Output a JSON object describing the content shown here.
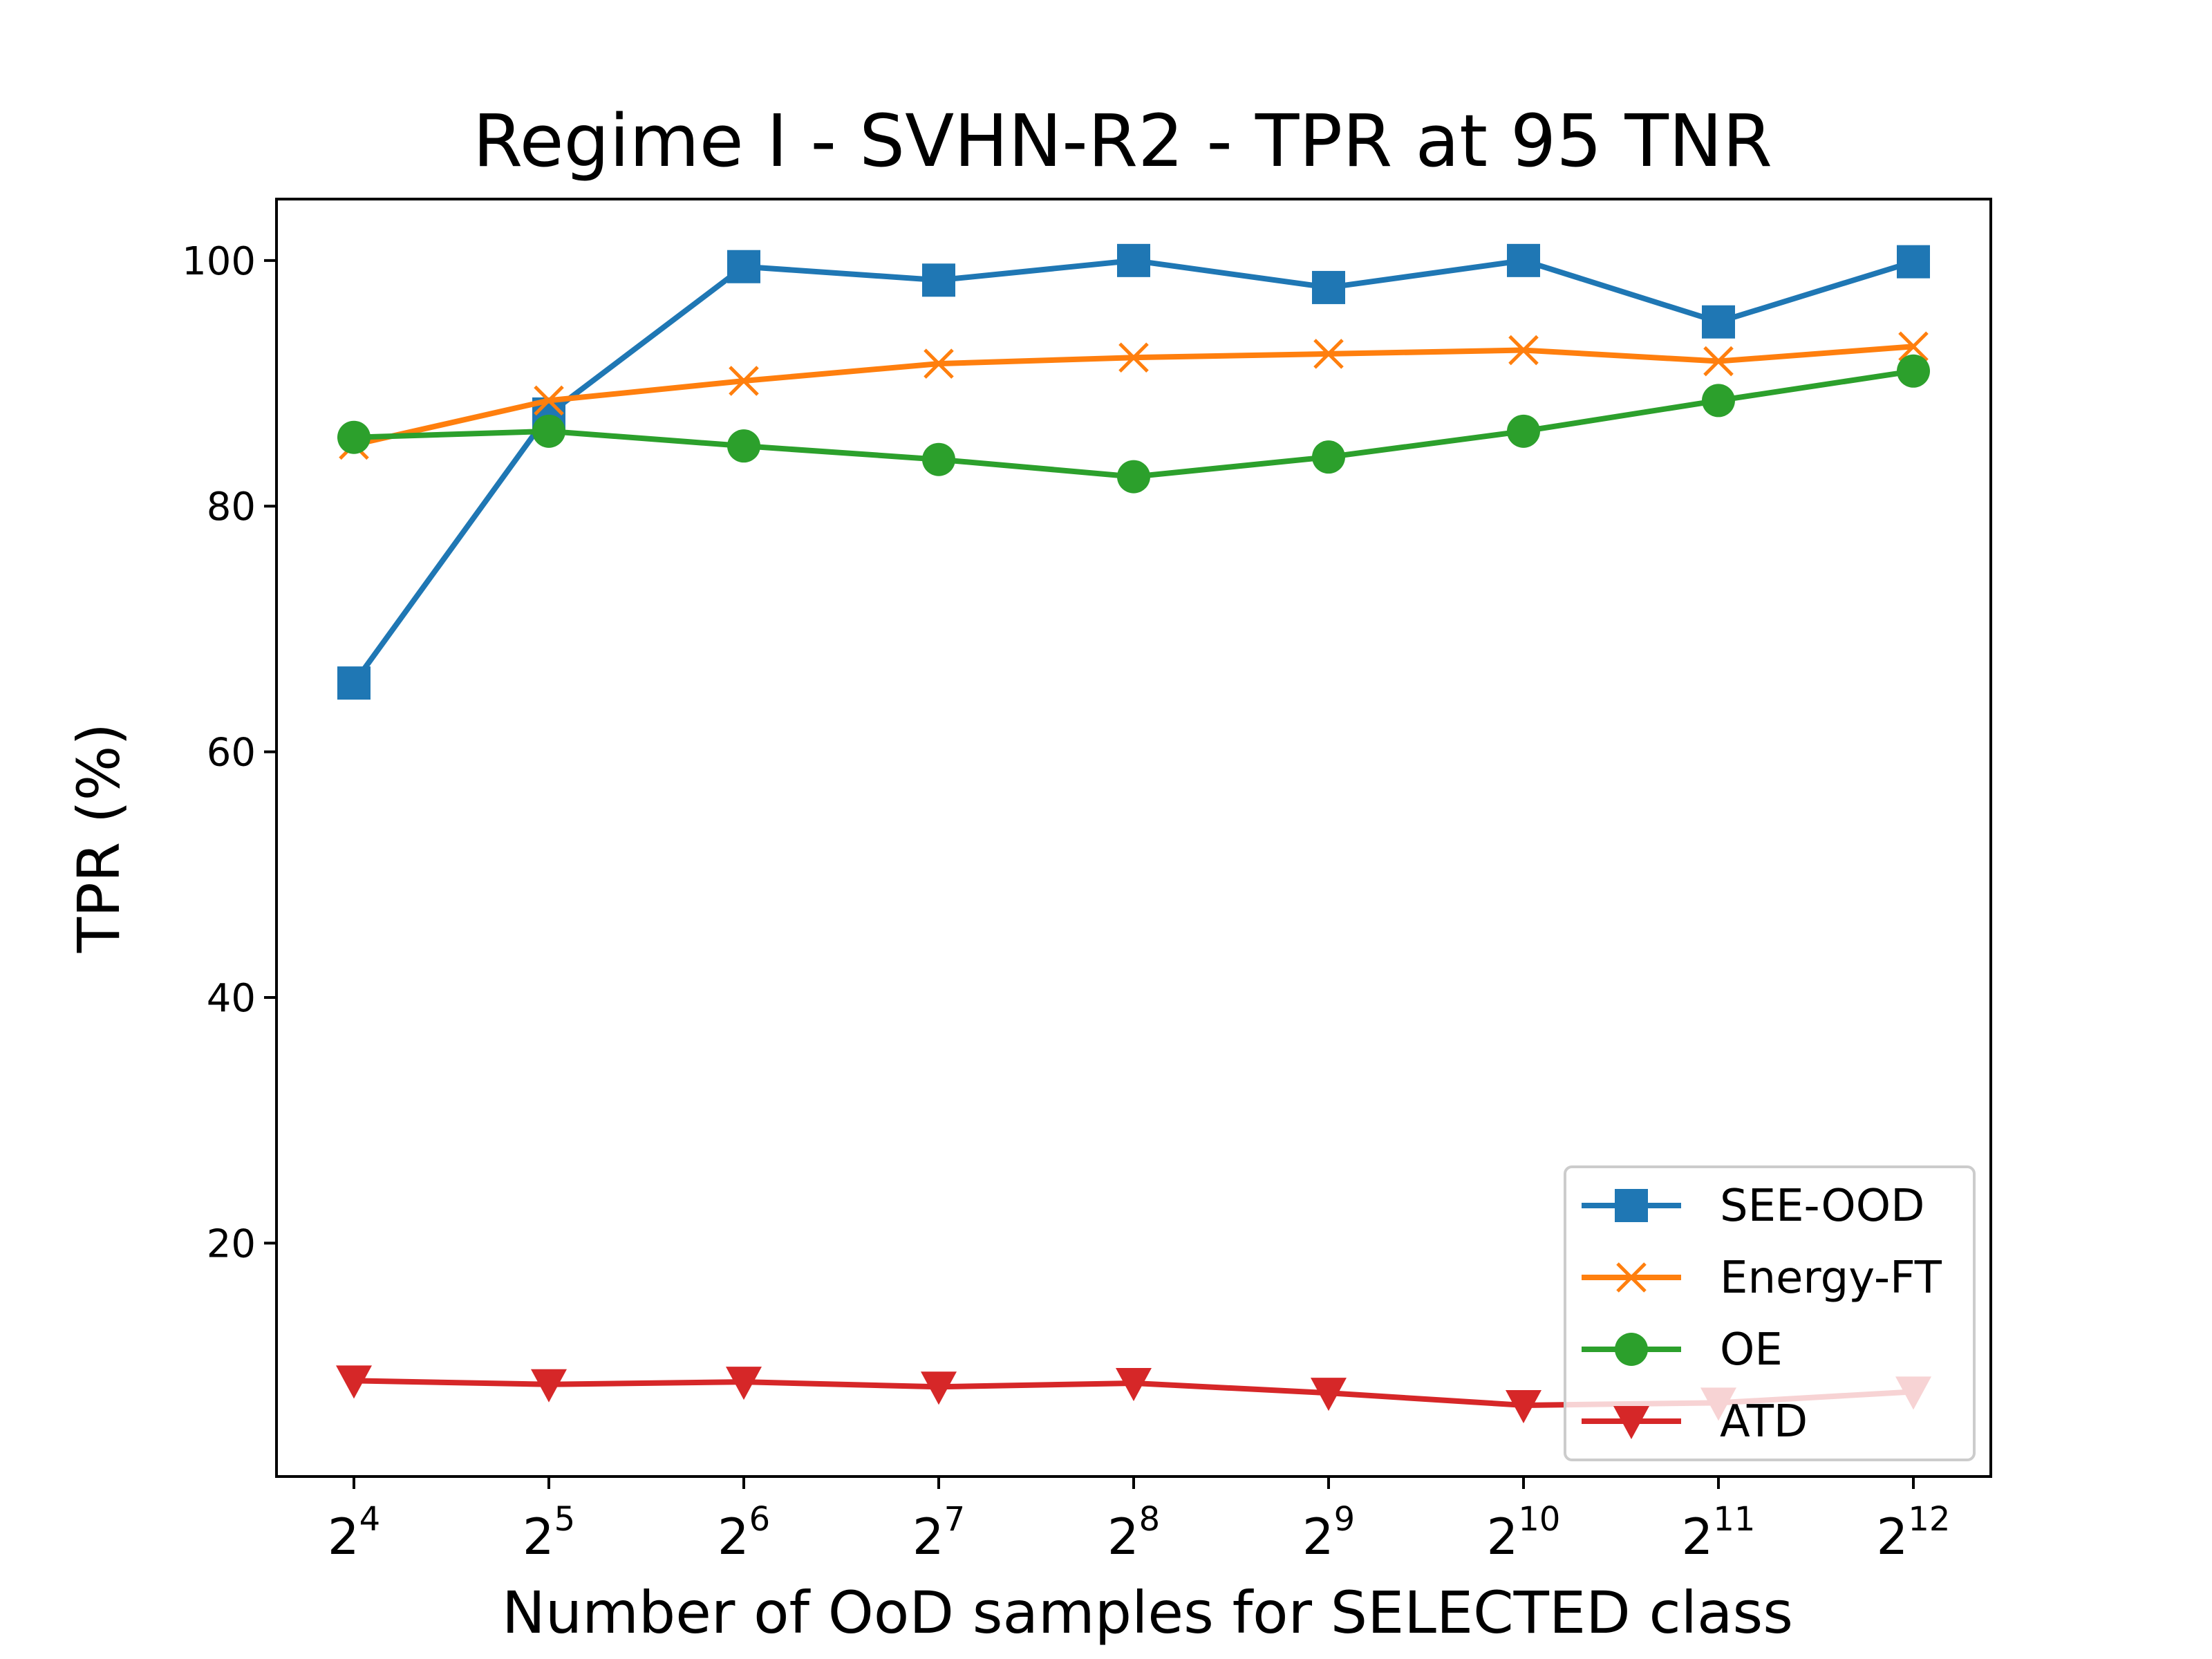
{
  "chart_data": {
    "type": "line",
    "title": "Regime I - SVHN-R2 - TPR at 95 TNR",
    "xlabel": "Number of OoD samples for SELECTED class",
    "ylabel": "TPR (%)",
    "x_scale": "log2",
    "x": [
      16,
      32,
      64,
      128,
      256,
      512,
      1024,
      2048,
      4096
    ],
    "x_tick_labels": [
      {
        "base": "2",
        "exp": "4"
      },
      {
        "base": "2",
        "exp": "5"
      },
      {
        "base": "2",
        "exp": "6"
      },
      {
        "base": "2",
        "exp": "7"
      },
      {
        "base": "2",
        "exp": "8"
      },
      {
        "base": "2",
        "exp": "9"
      },
      {
        "base": "2",
        "exp": "10"
      },
      {
        "base": "2",
        "exp": "11"
      },
      {
        "base": "2",
        "exp": "12"
      }
    ],
    "y_ticks": [
      "20",
      "40",
      "60",
      "80",
      "100"
    ],
    "ylim": [
      1.0,
      105.0
    ],
    "grid": false,
    "legend_position": "lower-right",
    "series": [
      {
        "name": "SEE-OOD",
        "color": "#1f77b4",
        "marker": "square",
        "values": [
          65.6,
          87.5,
          99.5,
          98.4,
          100.0,
          97.8,
          100.0,
          95.0,
          99.9
        ]
      },
      {
        "name": "Energy-FT",
        "color": "#ff7f0e",
        "marker": "x",
        "values": [
          85.0,
          88.6,
          90.2,
          91.6,
          92.1,
          92.4,
          92.7,
          91.8,
          93.0
        ]
      },
      {
        "name": "OE",
        "color": "#2ca02c",
        "marker": "circle",
        "values": [
          85.6,
          86.1,
          84.9,
          83.8,
          82.4,
          84.0,
          86.1,
          88.6,
          91.0
        ]
      },
      {
        "name": "ATD",
        "color": "#d62728",
        "marker": "triangle-down",
        "values": [
          8.8,
          8.5,
          8.7,
          8.3,
          8.6,
          7.8,
          6.8,
          7.0,
          7.9
        ]
      }
    ]
  }
}
